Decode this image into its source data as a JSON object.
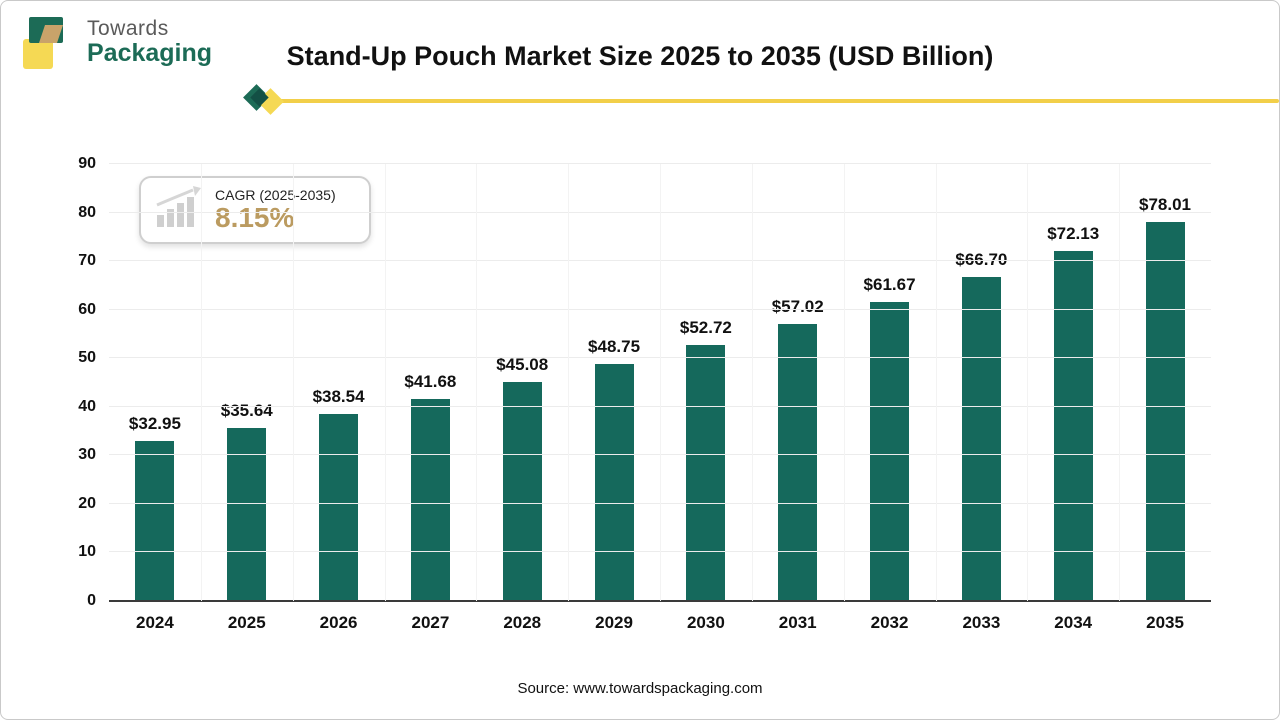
{
  "header": {
    "logo_line1": "Towards",
    "logo_line2": "Packaging",
    "title": "Stand-Up Pouch Market Size 2025 to 2035 (USD Billion)"
  },
  "badge": {
    "label": "CAGR (2025-2035)",
    "value": "8.15%"
  },
  "footer": {
    "source": "Source: www.towardspackaging.com"
  },
  "colors": {
    "bar": "#15695c",
    "accent_gold": "#f2cf49",
    "logo_green": "#1c6b56",
    "badge_value": "#bb9b60"
  },
  "chart_data": {
    "type": "bar",
    "title": "Stand-Up Pouch Market Size 2025 to 2035 (USD Billion)",
    "categories": [
      "2024",
      "2025",
      "2026",
      "2027",
      "2028",
      "2029",
      "2030",
      "2031",
      "2032",
      "2033",
      "2034",
      "2035"
    ],
    "values": [
      32.95,
      35.64,
      38.54,
      41.68,
      45.08,
      48.75,
      52.72,
      57.02,
      61.67,
      66.7,
      72.13,
      78.01
    ],
    "value_prefix": "$",
    "xlabel": "",
    "ylabel": "",
    "ylim": [
      0,
      90
    ],
    "ytick_step": 10,
    "grid": true,
    "legend": "none",
    "annotation": "CAGR (2025-2035) 8.15%"
  }
}
